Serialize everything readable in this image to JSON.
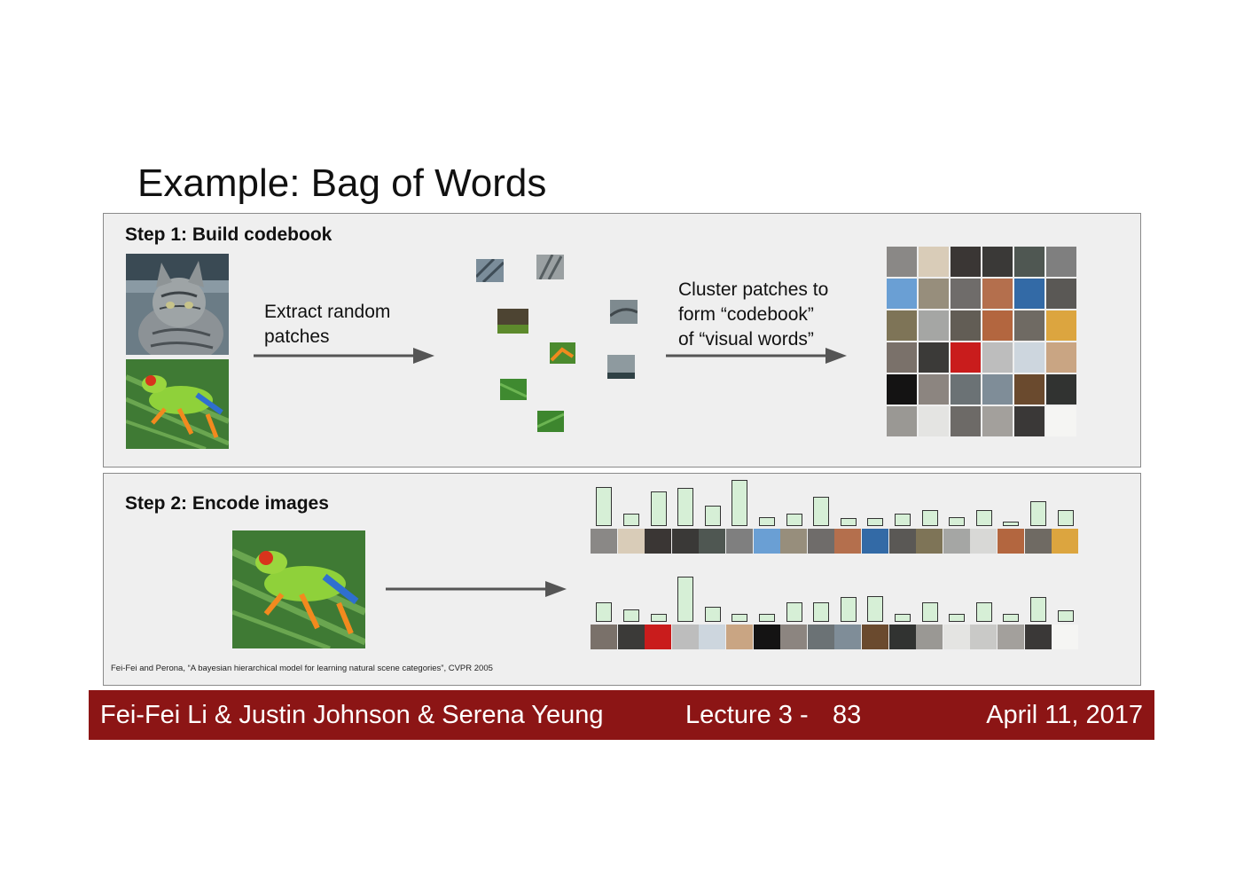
{
  "slide": {
    "title": "Example: Bag of Words"
  },
  "step1": {
    "label": "Step 1: Build codebook",
    "extract_line1": "Extract random",
    "extract_line2": "patches",
    "cluster_line1": "Cluster patches to",
    "cluster_line2": "form “codebook”",
    "cluster_line3": "of “visual words”"
  },
  "step2": {
    "label": "Step 2: Encode images"
  },
  "codebook_colors": [
    "#8a8886",
    "#d9ccb8",
    "#3a3634",
    "#3a3937",
    "#4f5752",
    "#7f7f7f",
    "#6a9fd4",
    "#978e7c",
    "#6f6c6a",
    "#b46f4d",
    "#336aa6",
    "#5a5855",
    "#7e7457",
    "#a5a6a4",
    "#625d55",
    "#b3663f",
    "#6f6a63",
    "#dca53f",
    "#7a716a",
    "#3b3a38",
    "#c91c1c",
    "#bdbdbd",
    "#cdd6de",
    "#c9a583",
    "#141313",
    "#8c8580",
    "#6b7275",
    "#7f8d98",
    "#6a4a2e",
    "#313331",
    "#9a9894",
    "#e4e4e2",
    "#6d6a67",
    "#a3a09c",
    "#3a3837",
    "#f5f5f3"
  ],
  "histogram1": {
    "values": [
      44,
      14,
      39,
      43,
      23,
      52,
      10,
      14,
      33,
      9,
      9,
      14,
      18,
      10,
      18,
      5,
      28,
      18
    ],
    "cell_colors": [
      "#8a8886",
      "#d9ccb8",
      "#3a3634",
      "#3a3937",
      "#4f5752",
      "#7f7f7f",
      "#6a9fd4",
      "#978e7c",
      "#6f6c6a",
      "#b46f4d",
      "#336aa6",
      "#5a5855",
      "#7e7457",
      "#a5a6a4",
      "#d8d8d6",
      "#b3663f",
      "#6f6a63",
      "#dca53f"
    ]
  },
  "histogram2": {
    "values": [
      22,
      14,
      9,
      51,
      17,
      9,
      9,
      22,
      22,
      28,
      29,
      9,
      22,
      9,
      22,
      9,
      28,
      13
    ],
    "cell_colors": [
      "#7a716a",
      "#3b3a38",
      "#c91c1c",
      "#bdbdbd",
      "#cdd6de",
      "#c9a583",
      "#141313",
      "#8c8580",
      "#6b7275",
      "#7f8d98",
      "#6a4a2e",
      "#313331",
      "#9a9894",
      "#e4e4e2",
      "#c9c9c7",
      "#a3a09c",
      "#3a3837",
      "#f5f5f3"
    ]
  },
  "colors": {
    "footer_bg": "#8c1515",
    "panel_bg": "#efefef",
    "bar_fill": "#d6efd6"
  },
  "citation": "Fei-Fei and Perona, “A bayesian hierarchical model for learning natural scene categories”, CVPR 2005",
  "footer": {
    "authors": "Fei-Fei Li & Justin Johnson & Serena Yeung",
    "lecture": "Lecture 3 -",
    "page": "83",
    "date": "April 11, 2017"
  }
}
